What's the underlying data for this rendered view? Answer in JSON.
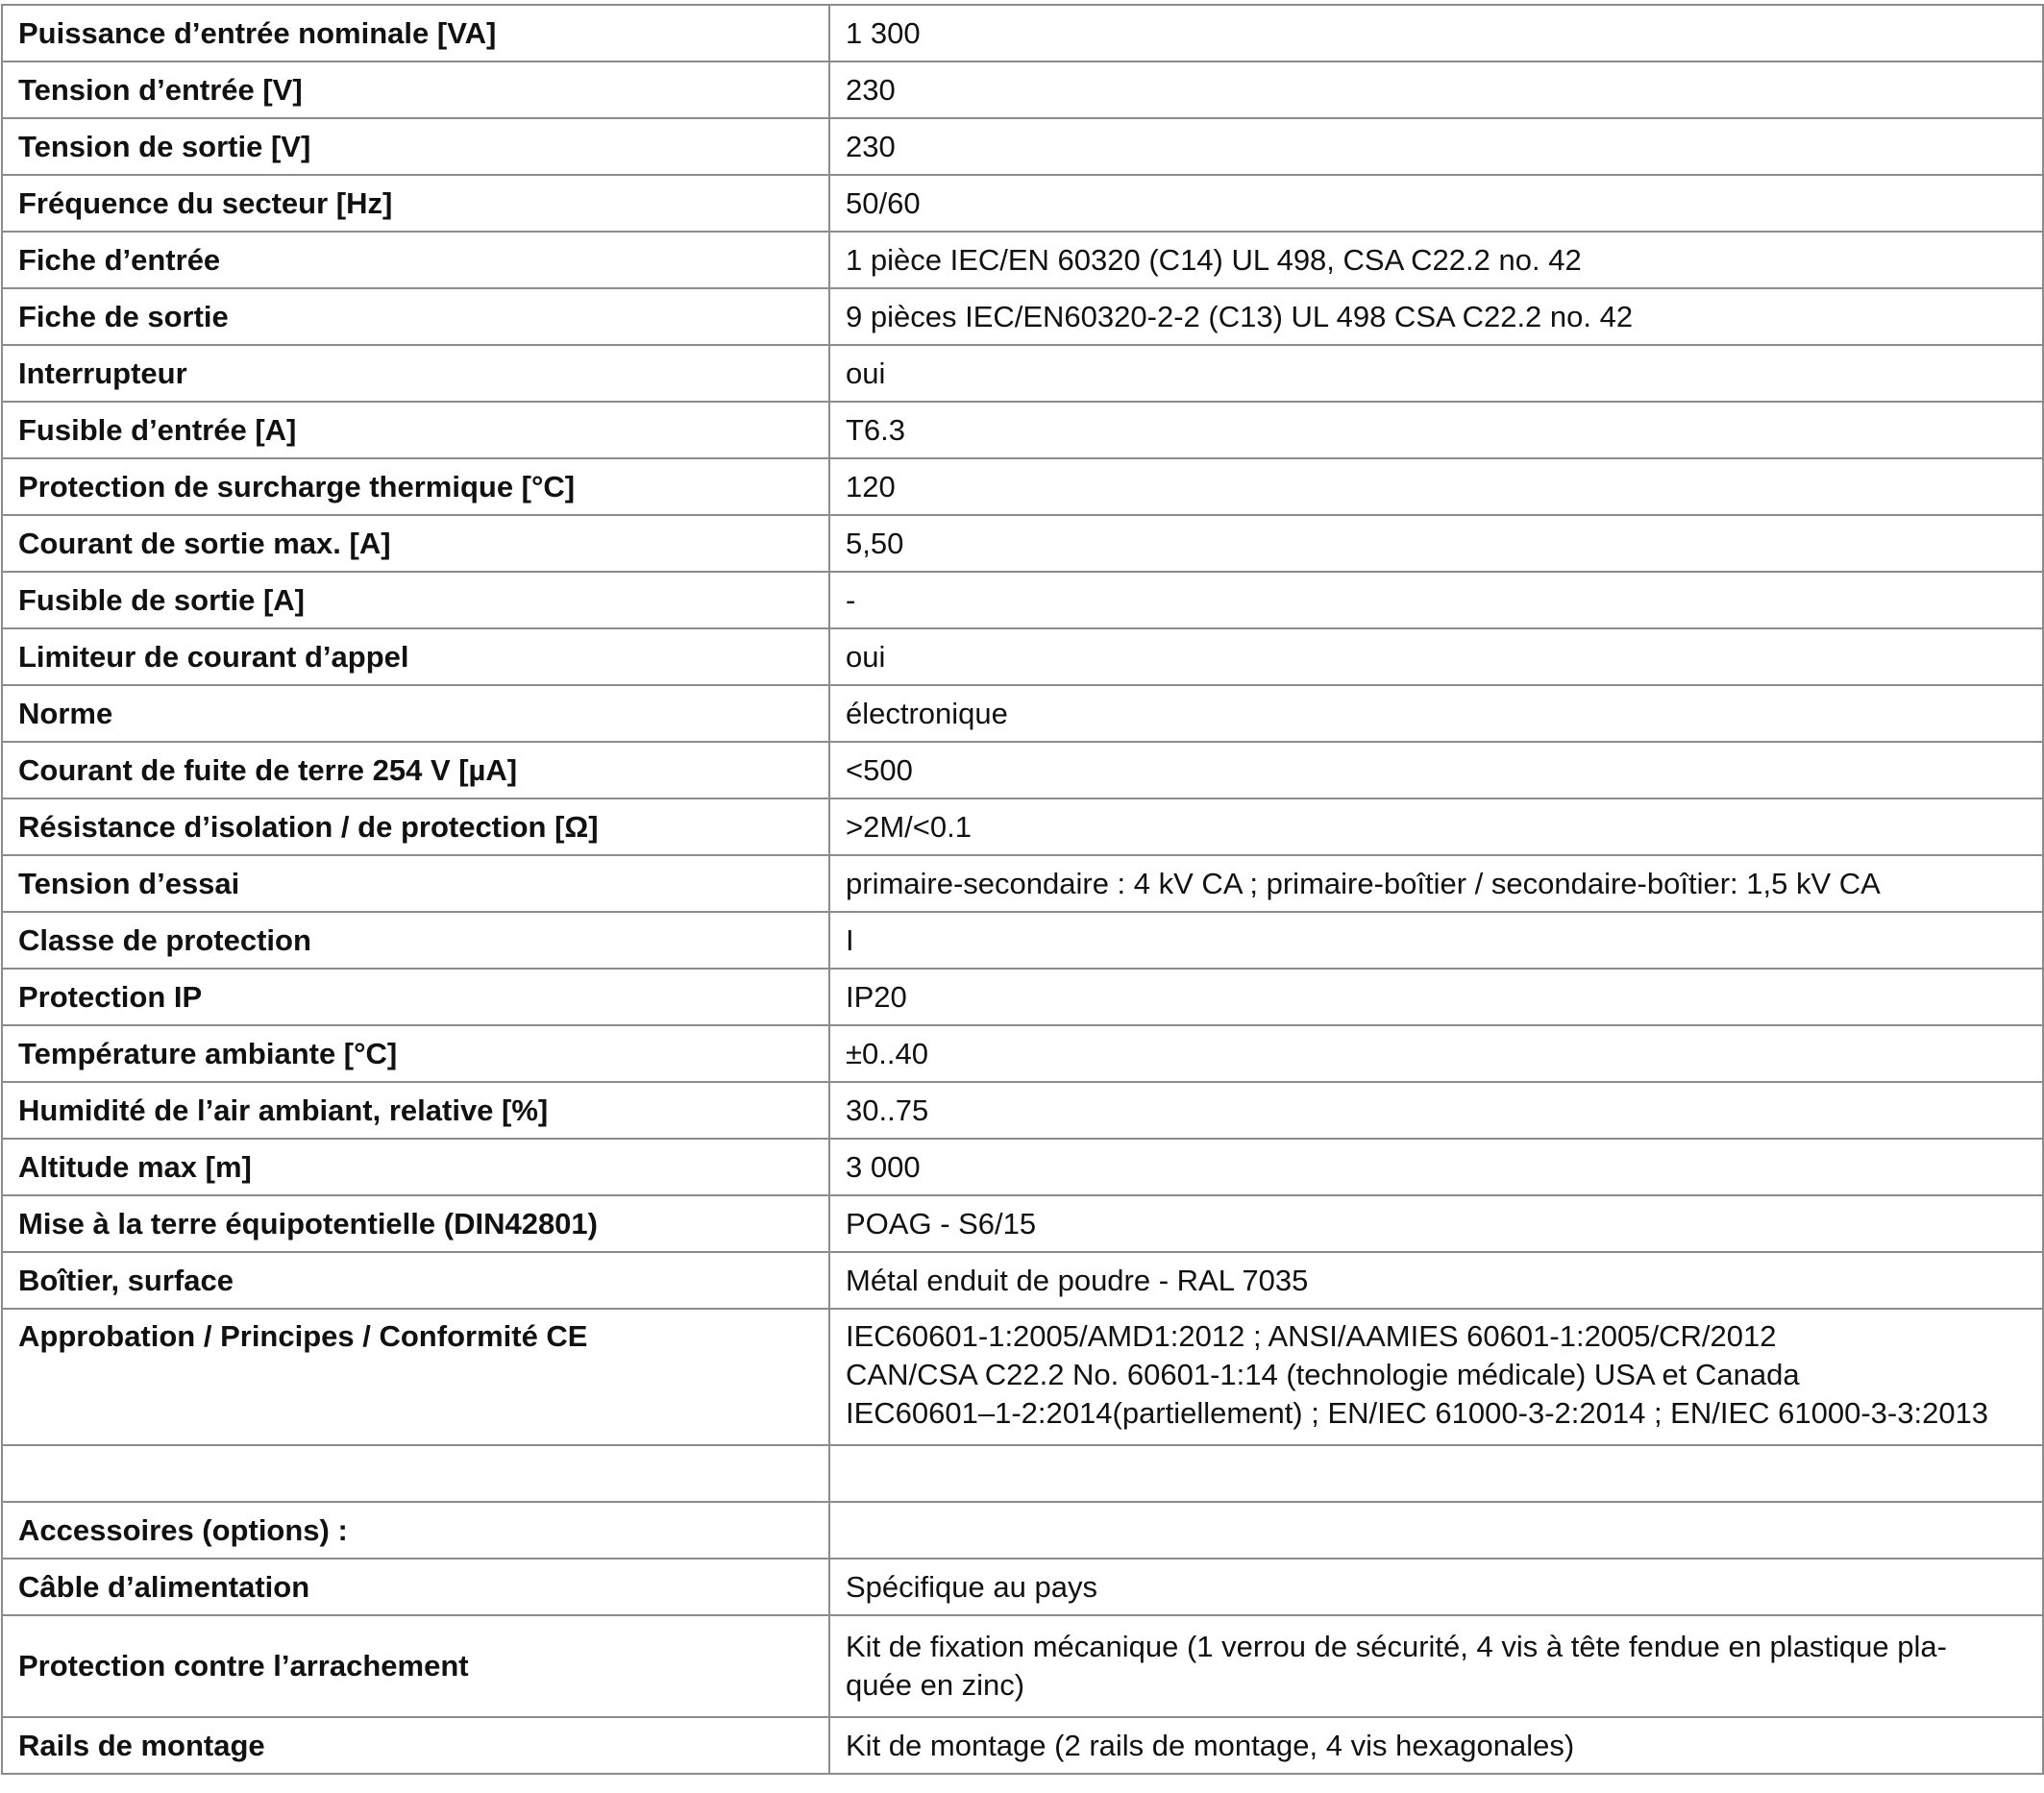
{
  "specs": [
    {
      "label": "Puissance d’entrée nominale [VA]",
      "value": "1 300"
    },
    {
      "label": "Tension d’entrée [V]",
      "value": "230"
    },
    {
      "label": "Tension de sortie [V]",
      "value": "230"
    },
    {
      "label": "Fréquence du secteur [Hz]",
      "value": "50/60"
    },
    {
      "label": "Fiche d’entrée",
      "value": "1 pièce IEC/EN 60320 (C14) UL 498, CSA C22.2 no. 42"
    },
    {
      "label": "Fiche de sortie",
      "value": "9 pièces IEC/EN60320-2-2 (C13) UL 498 CSA C22.2 no. 42"
    },
    {
      "label": "Interrupteur",
      "value": "oui"
    },
    {
      "label": "Fusible d’entrée [A]",
      "value": "T6.3"
    },
    {
      "label": "Protection de surcharge thermique [°C]",
      "value": "120"
    },
    {
      "label": "Courant de sortie max. [A]",
      "value": "5,50"
    },
    {
      "label": "Fusible de sortie [A]",
      "value": "-"
    },
    {
      "label": "Limiteur de courant d’appel",
      "value": "oui"
    },
    {
      "label": "Norme",
      "value": "électronique"
    },
    {
      "label": "Courant de fuite de terre 254 V [µA]",
      "value": "<500"
    },
    {
      "label": "Résistance d’isolation / de protection [Ω]",
      "value": ">2M/<0.1"
    },
    {
      "label": "Tension d’essai",
      "value": "primaire-secondaire : 4 kV CA ; primaire-boîtier / secondaire-boîtier: 1,5 kV CA"
    },
    {
      "label": "Classe de protection",
      "value": "I"
    },
    {
      "label": "Protection IP",
      "value": "IP20"
    },
    {
      "label": "Température ambiante [°C]",
      "value": "±0..40"
    },
    {
      "label": "Humidité de l’air ambiant, relative [%]",
      "value": "30..75"
    },
    {
      "label": "Altitude max [m]",
      "value": "3 000"
    },
    {
      "label": "Mise à la terre équipotentielle (DIN42801)",
      "value": "POAG - S6/15"
    },
    {
      "label": "Boîtier, surface",
      "value": "Métal enduit de poudre - RAL 7035"
    }
  ],
  "approbation": {
    "label": "Approbation / Principes / Conformité CE",
    "lines": [
      "IEC60601-1:2005/AMD1:2012 ; ANSI/AAMIES 60601-1:2005/CR/2012",
      "CAN/CSA C22.2 No. 60601-1:14 (technologie médicale) USA et Canada",
      "IEC60601–1-2:2014(partiellement) ; EN/IEC 61000-3-2:2014 ; EN/IEC 61000-3-3:2013"
    ]
  },
  "accessoires": {
    "heading": "Accessoires (options) :",
    "items": [
      {
        "label": "Câble d’alimentation",
        "value": "Spécifique au pays"
      },
      {
        "label": "Protection contre l’arrachement",
        "value": "Kit de fixation mécanique (1 verrou de sécurité, 4 vis à tête fendue en plastique pla-quée en zinc)"
      },
      {
        "label": "Rails de montage",
        "value": "Kit de montage (2 rails de montage, 4 vis hexagonales)"
      }
    ]
  }
}
